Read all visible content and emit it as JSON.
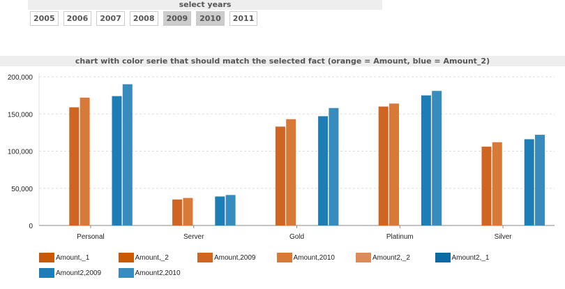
{
  "years_panel": {
    "title": "select years",
    "years": [
      {
        "label": "2005",
        "selected": false
      },
      {
        "label": "2006",
        "selected": false
      },
      {
        "label": "2007",
        "selected": false
      },
      {
        "label": "2008",
        "selected": false
      },
      {
        "label": "2009",
        "selected": true
      },
      {
        "label": "2010",
        "selected": true
      },
      {
        "label": "2011",
        "selected": false
      }
    ]
  },
  "chart_data": {
    "type": "bar",
    "title": "chart with color serie that should match the selected fact (orange = Amount, blue = Amount_2)",
    "categories": [
      "Personal",
      "Server",
      "Gold",
      "Platinum",
      "Silver"
    ],
    "ylim": [
      0,
      200000
    ],
    "yticks": [
      "0",
      "50,000",
      "100,000",
      "150,000",
      "200,000"
    ],
    "ytick_values": [
      0,
      50000,
      100000,
      150000,
      200000
    ],
    "grid": true,
    "legend_position": "bottom",
    "series": [
      {
        "name": "Amount,_1",
        "color": "#c75a0a",
        "values": [
          0,
          0,
          0,
          0,
          0
        ]
      },
      {
        "name": "Amount,_2",
        "color": "#c85a06",
        "values": [
          0,
          0,
          0,
          0,
          0
        ]
      },
      {
        "name": "Amount,2009",
        "color": "#cf6520",
        "values": [
          159000,
          35000,
          133000,
          160000,
          106000
        ]
      },
      {
        "name": "Amount,2010",
        "color": "#d77a38",
        "values": [
          172000,
          37000,
          143000,
          164000,
          112000
        ]
      },
      {
        "name": "Amount2,_2",
        "color": "#de8a55",
        "values": [
          0,
          0,
          0,
          0,
          0
        ]
      },
      {
        "name": "Amount2,_1",
        "color": "#0b6aa5",
        "values": [
          0,
          0,
          0,
          0,
          0
        ]
      },
      {
        "name": "Amount2,2009",
        "color": "#1f7db5",
        "values": [
          174000,
          39000,
          147000,
          175000,
          116000
        ]
      },
      {
        "name": "Amount2,2010",
        "color": "#388cbd",
        "values": [
          190000,
          41000,
          158000,
          181000,
          122000
        ]
      }
    ]
  }
}
